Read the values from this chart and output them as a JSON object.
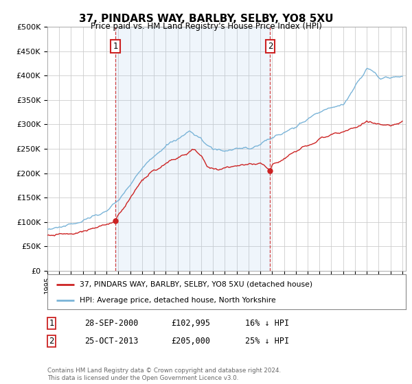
{
  "title": "37, PINDARS WAY, BARLBY, SELBY, YO8 5XU",
  "subtitle": "Price paid vs. HM Land Registry's House Price Index (HPI)",
  "ylim": [
    0,
    500000
  ],
  "yticks": [
    0,
    50000,
    100000,
    150000,
    200000,
    250000,
    300000,
    350000,
    400000,
    450000,
    500000
  ],
  "ytick_labels": [
    "£0",
    "£50K",
    "£100K",
    "£150K",
    "£200K",
    "£250K",
    "£300K",
    "£350K",
    "£400K",
    "£450K",
    "£500K"
  ],
  "hpi_color": "#7ab4d8",
  "price_color": "#cc2222",
  "marker_color": "#cc2222",
  "vline_color": "#cc2222",
  "fill_color": "#ddeeff",
  "grid_color": "#cccccc",
  "bg_color": "#ffffff",
  "purchase1_year": 2000.75,
  "purchase1_price": 102995,
  "purchase2_year": 2013.83,
  "purchase2_price": 205000,
  "legend_label1": "37, PINDARS WAY, BARLBY, SELBY, YO8 5XU (detached house)",
  "legend_label2": "HPI: Average price, detached house, North Yorkshire",
  "table_row1": [
    "1",
    "28-SEP-2000",
    "£102,995",
    "16% ↓ HPI"
  ],
  "table_row2": [
    "2",
    "25-OCT-2013",
    "£205,000",
    "25% ↓ HPI"
  ],
  "footer": "Contains HM Land Registry data © Crown copyright and database right 2024.\nThis data is licensed under the Open Government Licence v3.0."
}
